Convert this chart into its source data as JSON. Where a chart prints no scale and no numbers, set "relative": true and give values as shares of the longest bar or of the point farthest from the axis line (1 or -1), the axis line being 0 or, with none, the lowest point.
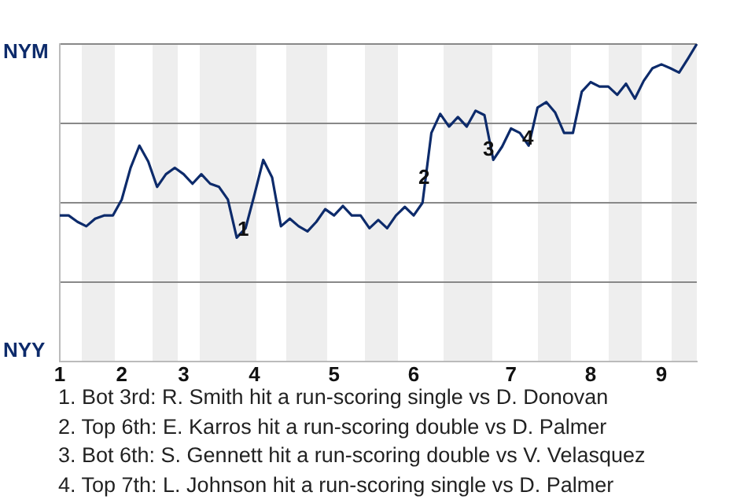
{
  "chart_data": {
    "type": "line",
    "relative": true,
    "categories": [
      "1",
      null,
      null,
      null,
      null,
      null,
      null,
      "2",
      null,
      null,
      null,
      null,
      null,
      null,
      "3",
      null,
      null,
      null,
      null,
      null,
      null,
      null,
      "4",
      null,
      null,
      null,
      null,
      null,
      null,
      null,
      null,
      "5",
      null,
      null,
      null,
      null,
      null,
      null,
      null,
      null,
      "6",
      null,
      null,
      null,
      null,
      null,
      null,
      null,
      null,
      null,
      null,
      "7",
      null,
      null,
      null,
      null,
      null,
      null,
      null,
      null,
      "8",
      null,
      null,
      null,
      null,
      null,
      null,
      null,
      "9",
      null,
      null,
      null,
      null
    ],
    "series": [
      {
        "color": "#0d2b6b",
        "values": [
          0.46,
          0.46,
          0.44,
          0.426,
          0.45,
          0.46,
          0.46,
          0.51,
          0.61,
          0.68,
          0.63,
          0.55,
          0.59,
          0.61,
          0.59,
          0.56,
          0.59,
          0.56,
          0.55,
          0.51,
          0.39,
          0.42,
          0.525,
          0.635,
          0.58,
          0.426,
          0.45,
          0.426,
          0.41,
          0.44,
          0.48,
          0.46,
          0.49,
          0.46,
          0.46,
          0.42,
          0.446,
          0.42,
          0.46,
          0.487,
          0.46,
          0.5,
          0.72,
          0.78,
          0.74,
          0.77,
          0.74,
          0.79,
          0.776,
          0.635,
          0.677,
          0.734,
          0.72,
          0.68,
          0.8,
          0.817,
          0.784,
          0.72,
          0.72,
          0.85,
          0.88,
          0.866,
          0.866,
          0.84,
          0.875,
          0.828,
          0.884,
          0.924,
          0.936,
          0.924,
          0.91,
          0.954,
          1
        ]
      }
    ],
    "grid": "y",
    "legend": false,
    "annotations": [
      "NYM",
      "NYY",
      "1",
      "2",
      "3",
      "4",
      "1. Bot 3rd: R. Smith hit a run-scoring single vs D. Donovan",
      "2. Top 6th: E. Karros hit a run-scoring double vs D. Palmer",
      "3. Bot 6th: S. Gennett hit a run-scoring double vs V. Velasquez",
      "4. Top 7th: L. Johnson hit a run-scoring single vs D. Palmer"
    ]
  }
}
